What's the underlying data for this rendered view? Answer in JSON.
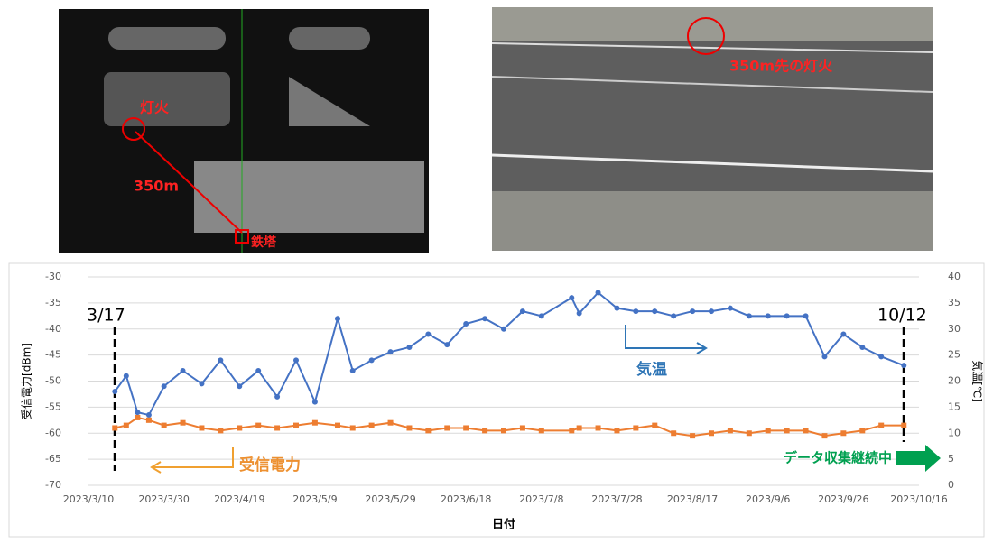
{
  "images": [
    {
      "annotations": [
        "灯火",
        "350m",
        "鉄塔"
      ]
    },
    {
      "annotations": [
        "350m先の灯火"
      ]
    }
  ],
  "chart_data": {
    "type": "line",
    "x_label": "日付",
    "y_label": "受信電力[dBm]",
    "y2_label": "気温[℃]",
    "annotations": [
      "3/17",
      "10/12",
      "気温",
      "受信電力",
      "データ収集継続中"
    ],
    "xlim": [
      "2023/3/10",
      "2023/10/16"
    ],
    "xticks": [
      "2023/3/10",
      "2023/3/30",
      "2023/4/19",
      "2023/5/9",
      "2023/5/29",
      "2023/6/18",
      "2023/7/8",
      "2023/7/28",
      "2023/8/17",
      "2023/9/6",
      "2023/9/26",
      "2023/10/16"
    ],
    "ylim": [
      -70,
      -30
    ],
    "yticks": [
      -70,
      -65,
      -60,
      -55,
      -50,
      -45,
      -40,
      -35,
      -30
    ],
    "y2lim": [
      0,
      40
    ],
    "y2ticks": [
      0,
      5,
      10,
      15,
      20,
      25,
      30,
      35,
      40
    ],
    "grid": true,
    "x": [
      "2023/3/17",
      "2023/3/20",
      "2023/3/23",
      "2023/3/26",
      "2023/3/30",
      "2023/4/4",
      "2023/4/9",
      "2023/4/14",
      "2023/4/19",
      "2023/4/24",
      "2023/4/29",
      "2023/5/4",
      "2023/5/9",
      "2023/5/15",
      "2023/5/19",
      "2023/5/24",
      "2023/5/29",
      "2023/6/3",
      "2023/6/8",
      "2023/6/13",
      "2023/6/18",
      "2023/6/23",
      "2023/6/28",
      "2023/7/3",
      "2023/7/8",
      "2023/7/16",
      "2023/7/18",
      "2023/7/23",
      "2023/7/28",
      "2023/8/2",
      "2023/8/7",
      "2023/8/12",
      "2023/8/17",
      "2023/8/22",
      "2023/8/27",
      "2023/9/1",
      "2023/9/6",
      "2023/9/11",
      "2023/9/16",
      "2023/9/21",
      "2023/9/26",
      "2023/10/1",
      "2023/10/6",
      "2023/10/12"
    ],
    "series": [
      {
        "name": "気温",
        "color": "#4472c4",
        "axis": "y2",
        "values": [
          18,
          21,
          14,
          13.5,
          19,
          22,
          19.5,
          24,
          19,
          22,
          17,
          24,
          16,
          32,
          22,
          24,
          25.6,
          26.5,
          29,
          27,
          31,
          32,
          30,
          33.4,
          32.5,
          36,
          33,
          37,
          34,
          33.4,
          33.4,
          32.5,
          33.4,
          33.4,
          34,
          32.5,
          32.5,
          32.5,
          32.5,
          24.7,
          29,
          26.5,
          24.7,
          23
        ]
      },
      {
        "name": "受信電力",
        "color": "#ed7d31",
        "values": [
          -59,
          -58.5,
          -57,
          -57.5,
          -58.5,
          -58,
          -59,
          -59.5,
          -59,
          -58.5,
          -59,
          -58.5,
          -58,
          -58.5,
          -59,
          -58.5,
          -58,
          -59,
          -59.5,
          -59,
          -59,
          -59.5,
          -59.5,
          -59,
          -59.5,
          -59.5,
          -59,
          -59,
          -59.5,
          -59,
          -58.5,
          -60,
          -60.5,
          -60,
          -59.5,
          -60,
          -59.5,
          -59.5,
          -59.5,
          -60.5,
          -60,
          -59.5,
          -58.5,
          -58.5
        ]
      }
    ]
  }
}
